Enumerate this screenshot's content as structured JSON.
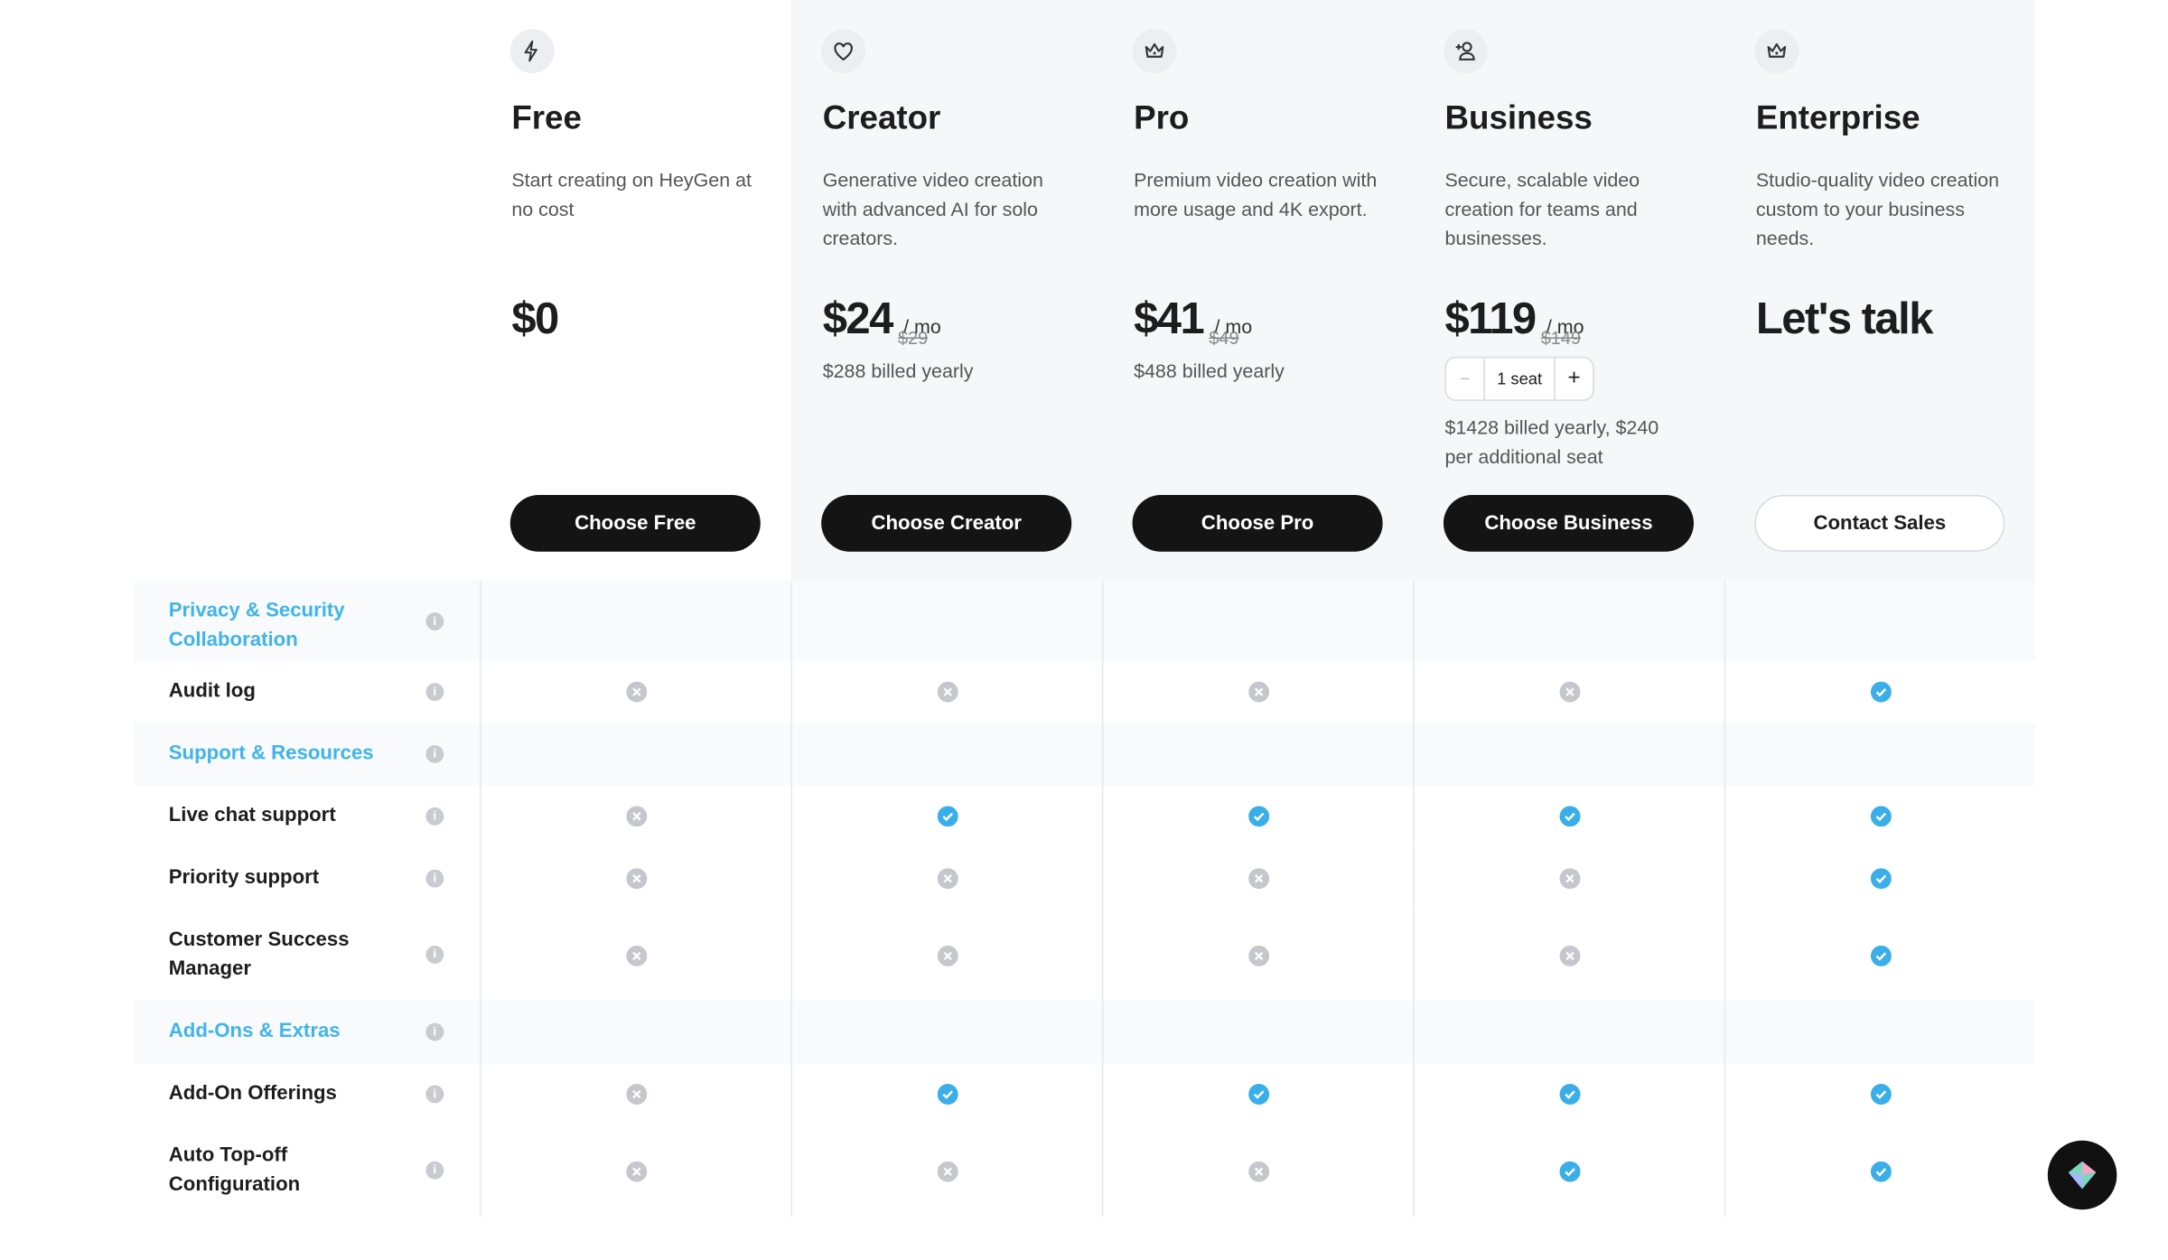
{
  "plans": [
    {
      "name": "Free",
      "description": "Start creating on HeyGen at no cost",
      "price": "$0",
      "button": "Choose Free"
    },
    {
      "name": "Creator",
      "description": "Generative video creation with advanced AI for solo creators.",
      "price": "$24",
      "original_price": "$29",
      "period": "/ mo",
      "billing": "$288 billed yearly",
      "button": "Choose Creator"
    },
    {
      "name": "Pro",
      "description": "Premium video creation with more usage and 4K export.",
      "price": "$41",
      "original_price": "$49",
      "period": "/ mo",
      "billing": "$488 billed yearly",
      "button": "Choose Pro"
    },
    {
      "name": "Business",
      "description": "Secure, scalable video creation for teams and businesses.",
      "price": "$119",
      "original_price": "$149",
      "period": "/ mo",
      "seats": "1 seat",
      "billing": "$1428 billed yearly, $240 per additional seat",
      "button": "Choose Business"
    },
    {
      "name": "Enterprise",
      "description": "Studio-quality video creation custom to your business needs.",
      "price": "Let's talk",
      "button": "Contact Sales"
    }
  ],
  "sections": [
    {
      "title": "Privacy & Security",
      "subtitle": "Collaboration",
      "features": [
        {
          "name": "Audit log",
          "availability": [
            false,
            false,
            false,
            false,
            true
          ]
        }
      ]
    },
    {
      "title": "Support & Resources",
      "features": [
        {
          "name": "Live chat support",
          "availability": [
            false,
            true,
            true,
            true,
            true
          ]
        },
        {
          "name": "Priority support",
          "availability": [
            false,
            false,
            false,
            false,
            true
          ]
        },
        {
          "name": "Customer Success Manager",
          "availability": [
            false,
            false,
            false,
            false,
            true
          ]
        }
      ]
    },
    {
      "title": "Add-Ons & Extras",
      "features": [
        {
          "name": "Add-On Offerings",
          "availability": [
            false,
            true,
            true,
            true,
            true
          ]
        },
        {
          "name": "Auto Top-off Configuration",
          "availability": [
            false,
            false,
            false,
            true,
            true
          ]
        }
      ]
    }
  ]
}
